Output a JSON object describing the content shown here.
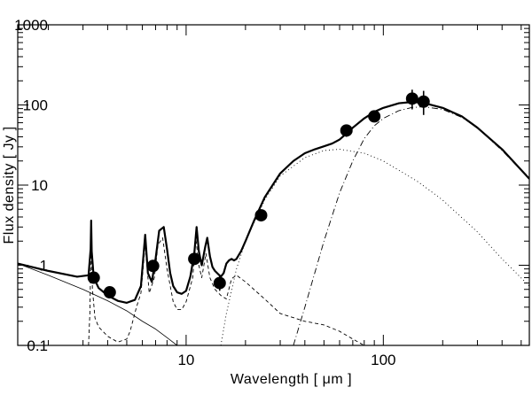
{
  "chart_data": {
    "type": "line",
    "title": "",
    "xlabel": "Wavelength  [  μm  ]",
    "ylabel": "Flux density  [  Jy  ]",
    "xscale": "log",
    "yscale": "log",
    "xlim": [
      1.4,
      550
    ],
    "ylim": [
      0.1,
      1000
    ],
    "x_tick_labels": [
      {
        "value": 10,
        "label": "10"
      },
      {
        "value": 100,
        "label": "100"
      }
    ],
    "y_tick_labels": [
      {
        "value": 0.1,
        "label": "0.1"
      },
      {
        "value": 1,
        "label": "1"
      },
      {
        "value": 10,
        "label": "10"
      },
      {
        "value": 100,
        "label": "100"
      },
      {
        "value": 1000,
        "label": "1000"
      }
    ],
    "grid": false,
    "legend": "none",
    "observations": [
      {
        "x": 3.4,
        "y": 0.7,
        "err_lo": 0.6,
        "err_hi": 0.82
      },
      {
        "x": 4.1,
        "y": 0.46,
        "err_lo": 0.4,
        "err_hi": 0.52
      },
      {
        "x": 6.8,
        "y": 0.98,
        "err_lo": 0.84,
        "err_hi": 1.12
      },
      {
        "x": 11.0,
        "y": 1.2,
        "err_lo": 1.05,
        "err_hi": 1.36
      },
      {
        "x": 14.8,
        "y": 0.6,
        "err_lo": 0.48,
        "err_hi": 0.74
      },
      {
        "x": 24.0,
        "y": 4.2,
        "err_lo": 3.9,
        "err_hi": 4.5
      },
      {
        "x": 65.0,
        "y": 48,
        "err_lo": 40,
        "err_hi": 57
      },
      {
        "x": 90.0,
        "y": 72,
        "err_lo": 63,
        "err_hi": 81
      },
      {
        "x": 140.0,
        "y": 120,
        "err_lo": 88,
        "err_hi": 155
      },
      {
        "x": 160.0,
        "y": 110,
        "err_lo": 75,
        "err_hi": 150
      }
    ],
    "series": [
      {
        "style": "total",
        "x": [
          1.4,
          2,
          2.8,
          3.2,
          3.28,
          3.3,
          3.32,
          3.4,
          3.6,
          4.0,
          4.5,
          5.0,
          5.5,
          5.9,
          6.2,
          6.4,
          6.7,
          7.0,
          7.3,
          7.7,
          8.0,
          8.3,
          8.6,
          9.0,
          9.5,
          10.0,
          10.5,
          11.0,
          11.3,
          11.6,
          12.0,
          12.5,
          12.8,
          13.2,
          13.6,
          14.0,
          14.5,
          15.0,
          15.5,
          16.0,
          16.5,
          17.0,
          17.5,
          18.0,
          19.0,
          20.0,
          22.0,
          25.0,
          30.0,
          35.0,
          40.0,
          45.0,
          50.0,
          55.0,
          60.0,
          65.0,
          70.0,
          80.0,
          90.0,
          100.0,
          120.0,
          140.0,
          160.0,
          200.0,
          250.0,
          300.0,
          400.0,
          550.0
        ],
        "y": [
          1.05,
          0.85,
          0.72,
          0.75,
          1.6,
          3.6,
          1.5,
          0.7,
          0.52,
          0.42,
          0.36,
          0.34,
          0.37,
          0.55,
          2.4,
          0.8,
          0.62,
          1.2,
          2.7,
          3.0,
          1.6,
          0.8,
          0.55,
          0.46,
          0.44,
          0.48,
          0.72,
          1.4,
          3.0,
          1.5,
          1.0,
          1.7,
          2.2,
          1.3,
          0.95,
          0.85,
          0.78,
          0.72,
          0.8,
          1.05,
          1.15,
          1.2,
          1.15,
          1.2,
          1.5,
          2.0,
          3.5,
          7.0,
          14.0,
          20.0,
          25.0,
          28.0,
          30.5,
          33.0,
          37.0,
          44.0,
          52.0,
          68.0,
          82.0,
          92.0,
          105.0,
          109.0,
          106.0,
          92.0,
          72.0,
          52.0,
          28.0,
          12.0
        ]
      },
      {
        "style": "stellar",
        "x": [
          1.4,
          2.0,
          3.0,
          4.0,
          5.0,
          6.0,
          7.0,
          8.0,
          9.0
        ],
        "y": [
          1.05,
          0.75,
          0.5,
          0.36,
          0.27,
          0.2,
          0.16,
          0.125,
          0.1
        ]
      },
      {
        "style": "pah",
        "x": [
          3.2,
          3.25,
          3.3,
          3.35,
          3.45,
          3.6,
          4.0,
          4.5,
          5.0,
          5.2,
          5.6,
          5.9,
          6.2,
          6.5,
          6.9,
          7.2,
          7.6,
          8.0,
          8.6,
          9.0,
          9.5,
          10.0,
          10.8,
          11.2,
          11.6,
          12.0,
          12.6,
          13.2,
          14.0,
          15.0,
          16.0,
          17.0,
          18.0,
          20.0,
          25.0,
          30.0,
          40.0,
          50.0,
          60.0,
          70.0,
          80.0
        ],
        "y": [
          0.1,
          0.25,
          2.2,
          0.5,
          0.22,
          0.17,
          0.13,
          0.11,
          0.12,
          0.15,
          0.3,
          0.45,
          1.8,
          0.45,
          0.7,
          1.8,
          2.2,
          0.9,
          0.35,
          0.28,
          0.28,
          0.35,
          0.7,
          2.2,
          1.0,
          0.7,
          1.4,
          0.7,
          0.5,
          0.42,
          0.38,
          0.68,
          0.75,
          0.62,
          0.38,
          0.25,
          0.2,
          0.18,
          0.15,
          0.12,
          0.1
        ]
      },
      {
        "style": "warm_dust",
        "x": [
          15.0,
          16.0,
          18.0,
          20.0,
          25.0,
          30.0,
          40.0,
          50.0,
          60.0,
          80.0,
          100.0,
          150.0,
          200.0,
          300.0,
          400.0,
          550.0
        ],
        "y": [
          0.1,
          0.25,
          0.9,
          2.0,
          6.5,
          13.0,
          22.0,
          27.0,
          28.0,
          25.0,
          20.0,
          11.0,
          6.5,
          2.6,
          1.2,
          0.55
        ]
      },
      {
        "style": "cold_dust",
        "x": [
          35.0,
          40.0,
          50.0,
          60.0,
          70.0,
          80.0,
          90.0,
          100.0,
          120.0,
          140.0,
          160.0,
          200.0,
          250.0,
          300.0,
          400.0,
          550.0
        ],
        "y": [
          0.1,
          0.3,
          2.0,
          8.0,
          20.0,
          38.0,
          55.0,
          68.0,
          85.0,
          93.0,
          95.0,
          88.0,
          70.0,
          52.0,
          27.0,
          12.0
        ]
      }
    ]
  }
}
